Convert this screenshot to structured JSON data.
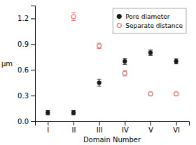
{
  "chart_data": {
    "type": "scatter",
    "xlabel": "Domain Number",
    "ylabel": "μm",
    "categories": [
      "I",
      "II",
      "III",
      "IV",
      "V",
      "VI"
    ],
    "series": [
      {
        "name": "Pore diameter",
        "color": "#1a1a1a",
        "marker": "circle",
        "values": [
          0.1,
          0.1,
          0.45,
          0.7,
          0.8,
          0.7
        ],
        "errors": [
          0.025,
          0.025,
          0.04,
          0.035,
          0.03,
          0.03
        ]
      },
      {
        "name": "Separate distance",
        "color": "#e87070",
        "marker": "open-circle",
        "values": [
          null,
          1.22,
          0.88,
          0.56,
          0.32,
          0.32
        ],
        "errors": [
          null,
          0.045,
          0.03,
          0.03,
          0.02,
          0.02
        ]
      }
    ],
    "ylim": [
      0,
      1.35
    ],
    "yticks": [
      {
        "value": 0,
        "label": "0.0"
      },
      0.3,
      0.6,
      0.9,
      1.2
    ],
    "grid": false,
    "legend": "upper right"
  }
}
